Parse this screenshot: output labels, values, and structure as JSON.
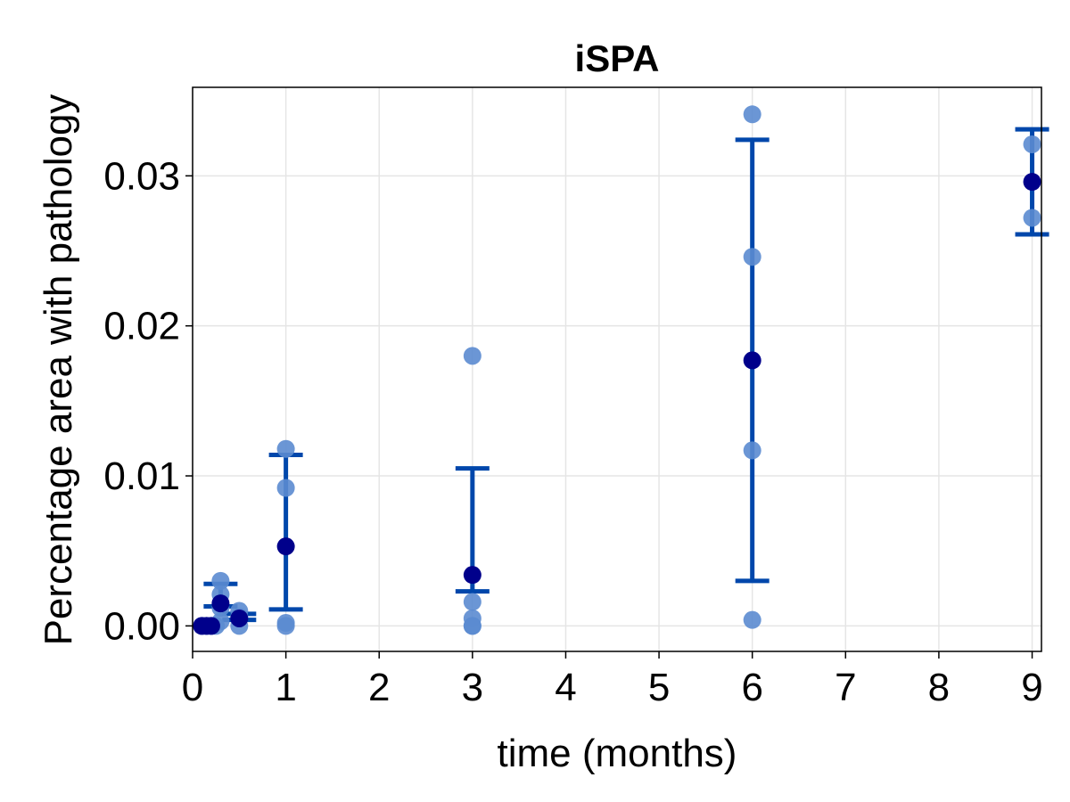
{
  "chart_data": {
    "type": "scatter",
    "title": "iSPA",
    "xlabel": "time (months)",
    "ylabel": "Percentage area with pathology",
    "xlim": [
      0,
      9.1
    ],
    "ylim": [
      -0.0017,
      0.0359
    ],
    "x_ticks": [
      "0",
      "1",
      "2",
      "3",
      "4",
      "5",
      "6",
      "7",
      "8",
      "9"
    ],
    "y_ticks": [
      "0.00",
      "0.01",
      "0.02",
      "0.03"
    ],
    "grid": true,
    "colors": {
      "points": "#5b8bd0",
      "mean": "#00008b",
      "errorbar": "#0047ab",
      "grid": "#e5e5e5"
    },
    "points": [
      {
        "x": 0.1,
        "y": 0.0
      },
      {
        "x": 0.15,
        "y": 0.0
      },
      {
        "x": 0.2,
        "y": 0.0
      },
      {
        "x": 0.25,
        "y": 0.0
      },
      {
        "x": 0.3,
        "y": 0.003
      },
      {
        "x": 0.3,
        "y": 0.0021
      },
      {
        "x": 0.3,
        "y": 0.0012
      },
      {
        "x": 0.3,
        "y": 0.0003
      },
      {
        "x": 0.5,
        "y": 0.001
      },
      {
        "x": 0.5,
        "y": 0.0006
      },
      {
        "x": 0.5,
        "y": 0.0
      },
      {
        "x": 1,
        "y": 0.0118
      },
      {
        "x": 1,
        "y": 0.0092
      },
      {
        "x": 1,
        "y": 0.0002
      },
      {
        "x": 1,
        "y": 0.0
      },
      {
        "x": 3,
        "y": 0.018
      },
      {
        "x": 3,
        "y": 0.0016
      },
      {
        "x": 3,
        "y": 0.0005
      },
      {
        "x": 3,
        "y": 0.0
      },
      {
        "x": 3,
        "y": 0.0
      },
      {
        "x": 6,
        "y": 0.0341
      },
      {
        "x": 6,
        "y": 0.0246
      },
      {
        "x": 6,
        "y": 0.0117
      },
      {
        "x": 6,
        "y": 0.0004
      },
      {
        "x": 9,
        "y": 0.0321
      },
      {
        "x": 9,
        "y": 0.0272
      }
    ],
    "means": [
      {
        "x": 0.1,
        "y": 0.0,
        "lower": 0.0,
        "upper": 0.0
      },
      {
        "x": 0.15,
        "y": 0.0,
        "lower": 0.0,
        "upper": 0.0
      },
      {
        "x": 0.2,
        "y": 0.0,
        "lower": 0.0,
        "upper": 0.0
      },
      {
        "x": 0.3,
        "y": 0.0015,
        "lower": 0.0013,
        "upper": 0.0028
      },
      {
        "x": 0.5,
        "y": 0.0005,
        "lower": 0.0004,
        "upper": 0.0008
      },
      {
        "x": 1,
        "y": 0.0053,
        "lower": 0.0011,
        "upper": 0.0114
      },
      {
        "x": 3,
        "y": 0.0034,
        "lower": 0.0023,
        "upper": 0.0105
      },
      {
        "x": 6,
        "y": 0.0177,
        "lower": 0.003,
        "upper": 0.0324
      },
      {
        "x": 9,
        "y": 0.0296,
        "lower": 0.0261,
        "upper": 0.0331
      }
    ]
  }
}
